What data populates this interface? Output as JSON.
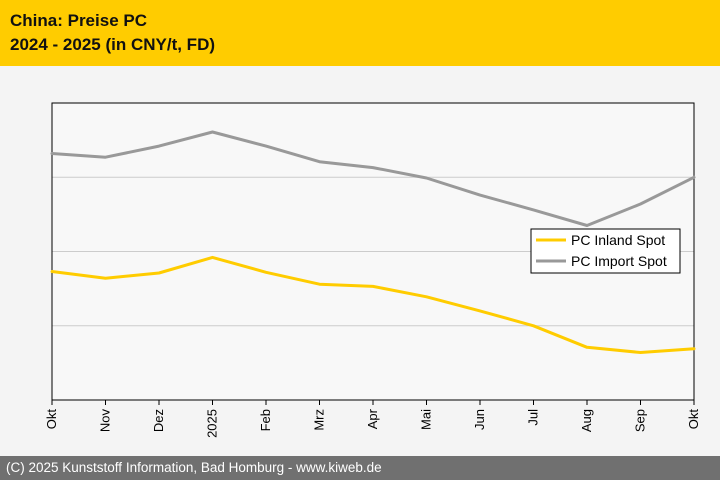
{
  "header": {
    "title": "China: Preise PC",
    "subtitle": "2024 - 2025 (in CNY/t, FD)"
  },
  "footer": {
    "text": "(C) 2025 Kunststoff Information, Bad Homburg - www.kiweb.de"
  },
  "colors": {
    "header_bg": "#ffcc00",
    "footer_bg": "#707070",
    "inland": "#ffcc00",
    "import": "#999999"
  },
  "chart_data": {
    "type": "line",
    "title": "China: Preise PC",
    "subtitle": "2024 - 2025 (in CNY/t, FD)",
    "categories": [
      "Okt",
      "Nov",
      "Dez",
      "2025",
      "Feb",
      "Mrz",
      "Apr",
      "Mai",
      "Jun",
      "Jul",
      "Aug",
      "Sep",
      "Okt"
    ],
    "series": [
      {
        "name": "PC Inland Spot",
        "color": "#ffcc00",
        "values": [
          1.73,
          1.64,
          1.71,
          1.92,
          1.72,
          1.56,
          1.53,
          1.39,
          1.2,
          1.0,
          0.71,
          0.64,
          0.69
        ]
      },
      {
        "name": "PC Import Spot",
        "color": "#999999",
        "values": [
          3.32,
          3.27,
          3.42,
          3.61,
          3.42,
          3.21,
          3.13,
          2.99,
          2.76,
          2.56,
          2.35,
          2.64,
          3.0
        ]
      }
    ],
    "ylim": [
      0,
      4
    ],
    "yticks_labeled": false,
    "grid": "horizontal",
    "legend_position": "right"
  }
}
